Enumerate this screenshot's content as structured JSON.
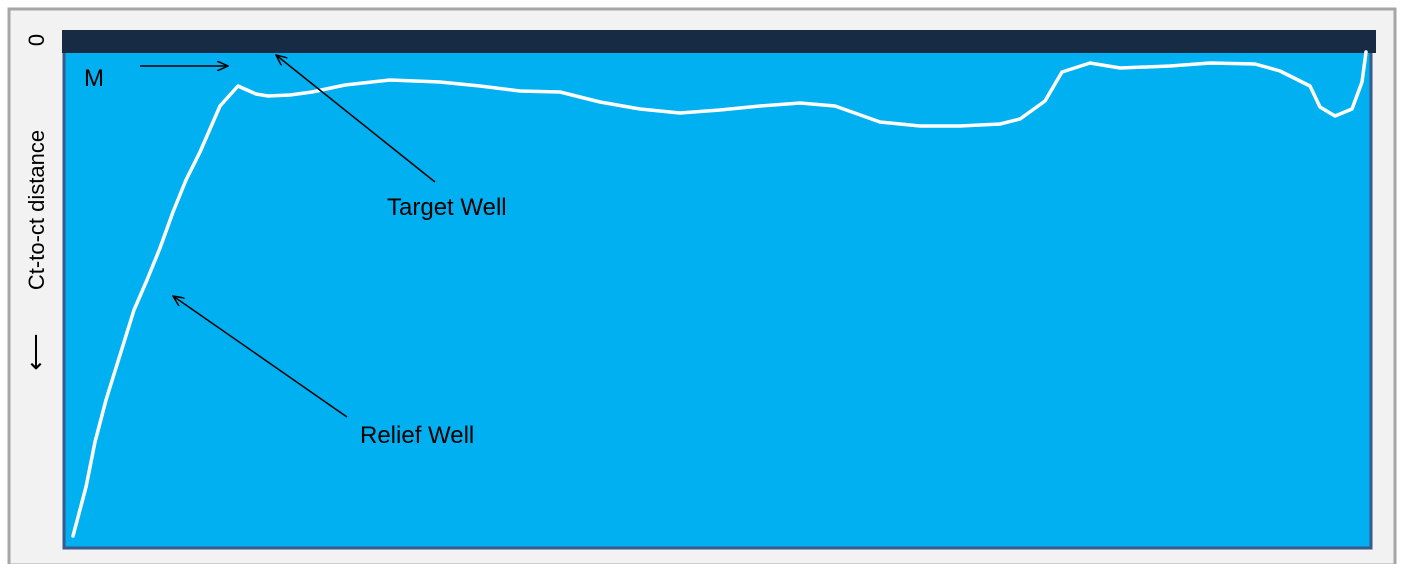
{
  "diagram": {
    "zero_label": "0",
    "axis_label": "Ct-to-ct distance",
    "axis_arrow": "⟵",
    "m_label": "M",
    "target_label": "Target Well",
    "relief_label": "Relief Well",
    "colors": {
      "frame_bg": "#f2f2f2",
      "frame_border": "#a6a6a6",
      "panel_fill": "#00b0f0",
      "panel_border": "#3a5a8c",
      "target_bar": "#172b45",
      "curve": "#ffffff",
      "arrow": "#000000",
      "text": "#000000"
    }
  }
}
